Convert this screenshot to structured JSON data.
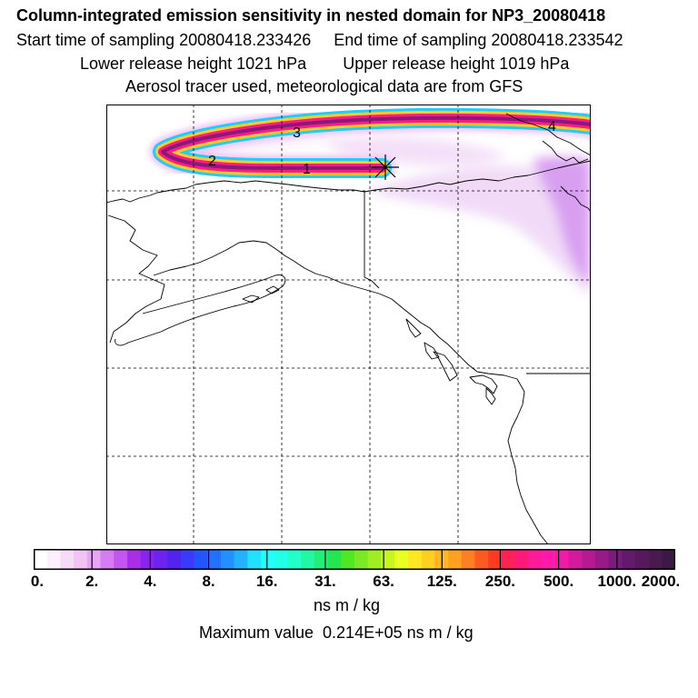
{
  "title": "Column-integrated emission sensitivity in nested domain for NP3_20080418",
  "sampling": {
    "start": "Start time of sampling 20080418.233426",
    "end": "End time of sampling 20080418.233542"
  },
  "release": {
    "lower": "Lower release height 1021 hPa",
    "upper": "Upper release height 1019 hPa"
  },
  "tracer_info": "Aerosol tracer used, meteorological data are from GFS",
  "track_labels": [
    "1",
    "2",
    "3",
    "4"
  ],
  "colorbar": {
    "ticks": [
      "0.",
      "2.",
      "4.",
      "8.",
      "16.",
      "31.",
      "63.",
      "125.",
      "250.",
      "500.",
      "1000.",
      "2000."
    ],
    "colors": [
      "#ffffff",
      "#fcf0fc",
      "#f7dcf7",
      "#f0c4f5",
      "#e7a6f4",
      "#d57cf2",
      "#c455f0",
      "#a82ee8",
      "#8b22ee",
      "#6e22ee",
      "#5222ee",
      "#3a3aff",
      "#2255ff",
      "#2272ff",
      "#2290ff",
      "#22b2ff",
      "#22e0ff",
      "#22ffff",
      "#22ffe6",
      "#22ffc8",
      "#22f7a4",
      "#22ee7a",
      "#22e84e",
      "#50e822",
      "#7ae822",
      "#a0ee22",
      "#c8f522",
      "#e8ff22",
      "#ffe822",
      "#ffd022",
      "#ffb822",
      "#ffa022",
      "#ff8022",
      "#ff5a22",
      "#ff3a22",
      "#ff2255",
      "#ff1a7a",
      "#ff1a9a",
      "#ff1aaa",
      "#f21aa6",
      "#d41a9c",
      "#b61a92",
      "#981a88",
      "#7a1a7e",
      "#641a6a",
      "#561a5c",
      "#481a50",
      "#3a1a44"
    ],
    "units": "ns m / kg"
  },
  "max_value": "Maximum value  0.214E+05 ns m / kg"
}
